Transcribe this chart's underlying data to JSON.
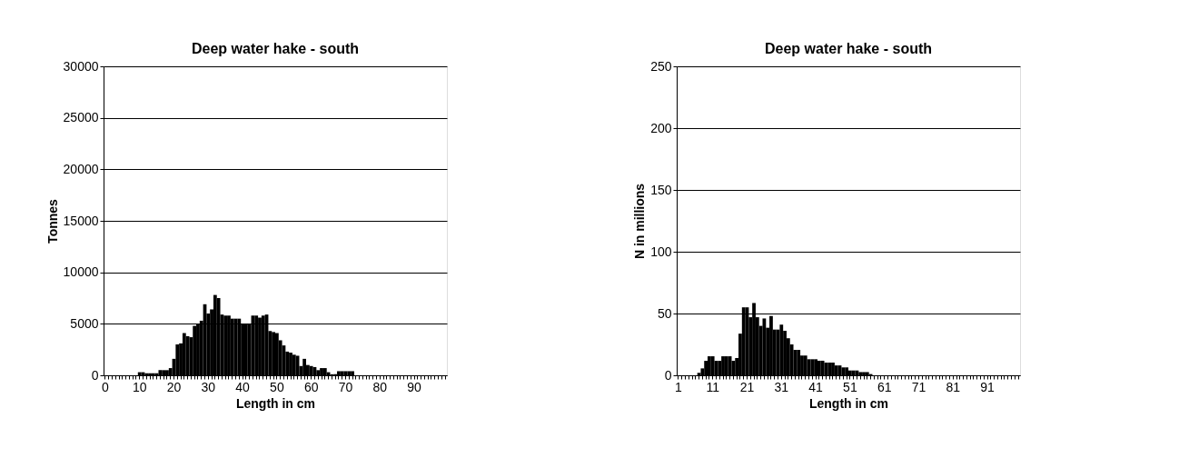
{
  "chart_data": [
    {
      "type": "bar",
      "title": "Deep water hake - south",
      "xlabel": "Length in cm",
      "ylabel": "Tonnes",
      "categories": [
        "0",
        null,
        null,
        null,
        null,
        null,
        null,
        null,
        null,
        null,
        "10",
        null,
        null,
        null,
        null,
        null,
        null,
        null,
        null,
        null,
        "20",
        null,
        null,
        null,
        null,
        null,
        null,
        null,
        null,
        null,
        "30",
        null,
        null,
        null,
        null,
        null,
        null,
        null,
        null,
        null,
        "40",
        null,
        null,
        null,
        null,
        null,
        null,
        null,
        null,
        null,
        "50",
        null,
        null,
        null,
        null,
        null,
        null,
        null,
        null,
        null,
        "60",
        null,
        null,
        null,
        null,
        null,
        null,
        null,
        null,
        null,
        "70",
        null,
        null,
        null,
        null,
        null,
        null,
        null,
        null,
        null,
        "80",
        null,
        null,
        null,
        null,
        null,
        null,
        null,
        null,
        null,
        "90",
        null,
        null,
        null,
        null,
        null,
        null,
        null,
        null,
        null
      ],
      "series": [
        {
          "color": "#000000",
          "values": [
            null,
            null,
            null,
            null,
            null,
            null,
            null,
            null,
            null,
            null,
            300,
            300,
            200,
            200,
            200,
            200,
            500,
            500,
            500,
            700,
            1600,
            3000,
            3100,
            4100,
            3800,
            3700,
            4800,
            5000,
            5300,
            6900,
            6000,
            6400,
            7800,
            7500,
            5900,
            5800,
            5800,
            5500,
            5500,
            5500,
            5000,
            5000,
            5000,
            5800,
            5800,
            5600,
            5800,
            5900,
            4300,
            4200,
            4100,
            3400,
            2900,
            2300,
            2200,
            2000,
            1900,
            900,
            1600,
            1000,
            900,
            800,
            500,
            700,
            700,
            300,
            100,
            100,
            400,
            400,
            400,
            400,
            400,
            null,
            null,
            null,
            null,
            null,
            null,
            null,
            null,
            null,
            null,
            null,
            null,
            null,
            null,
            null,
            null,
            null,
            null,
            null,
            null,
            null,
            null,
            null,
            null,
            null,
            null,
            null
          ]
        }
      ],
      "ylim": [
        0,
        30000
      ],
      "yticks": [
        0,
        5000,
        10000,
        15000,
        20000,
        25000,
        30000
      ],
      "grid": "y"
    },
    {
      "type": "bar",
      "title": "Deep water hake - south",
      "xlabel": "Length in cm",
      "ylabel": "N in millions",
      "categories": [
        "1",
        null,
        null,
        null,
        null,
        null,
        null,
        null,
        null,
        null,
        "11",
        null,
        null,
        null,
        null,
        null,
        null,
        null,
        null,
        null,
        "21",
        null,
        null,
        null,
        null,
        null,
        null,
        null,
        null,
        null,
        "31",
        null,
        null,
        null,
        null,
        null,
        null,
        null,
        null,
        null,
        "41",
        null,
        null,
        null,
        null,
        null,
        null,
        null,
        null,
        null,
        "51",
        null,
        null,
        null,
        null,
        null,
        null,
        null,
        null,
        null,
        "61",
        null,
        null,
        null,
        null,
        null,
        null,
        null,
        null,
        null,
        "71",
        null,
        null,
        null,
        null,
        null,
        null,
        null,
        null,
        null,
        "81",
        null,
        null,
        null,
        null,
        null,
        null,
        null,
        null,
        null,
        "91",
        null,
        null,
        null,
        null,
        null,
        null,
        null,
        null,
        null
      ],
      "series": [
        {
          "color": "#000000",
          "values": [
            null,
            null,
            null,
            null,
            null,
            null,
            2,
            5.6,
            11.7,
            15.4,
            15.4,
            11.7,
            11.7,
            15.4,
            15.4,
            15.4,
            11.7,
            14,
            33.7,
            55,
            55,
            47,
            58.5,
            47,
            40,
            46,
            38.5,
            48,
            37,
            37,
            41,
            36,
            30,
            25,
            20.6,
            20.6,
            16,
            16,
            13,
            13,
            13,
            11.8,
            11.8,
            10.3,
            10.3,
            10.3,
            8,
            8,
            6.4,
            6.4,
            3.9,
            3.9,
            3.9,
            2.6,
            2.6,
            2.6,
            1,
            null,
            null,
            null,
            null,
            null,
            null,
            null,
            null,
            null,
            null,
            null,
            null,
            null,
            null,
            null,
            null,
            null,
            null,
            null,
            null,
            null,
            null,
            null,
            null,
            null,
            null,
            null,
            null,
            null,
            null,
            null,
            null,
            null,
            null,
            null,
            null,
            null,
            null,
            null,
            null,
            null,
            null,
            null
          ]
        }
      ],
      "ylim": [
        0,
        250
      ],
      "yticks": [
        0,
        50,
        100,
        150,
        200,
        250
      ],
      "grid": "y"
    }
  ]
}
